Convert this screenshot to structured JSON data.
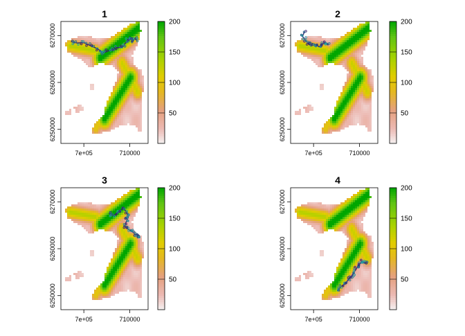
{
  "chart_data": [
    {
      "type": "heatmap",
      "title": "1",
      "xlabel": "",
      "ylabel": "",
      "x_ticks": [
        {
          "value": 700000,
          "label": "7e+05"
        },
        {
          "value": 710000,
          "label": "710000"
        }
      ],
      "y_ticks": [
        {
          "value": 6250000,
          "label": "6250000"
        },
        {
          "value": 6260000,
          "label": "6260000"
        },
        {
          "value": 6270000,
          "label": "6270000"
        }
      ],
      "xlim": [
        695000,
        714000
      ],
      "ylim": [
        6247000,
        6273000
      ],
      "legend": {
        "position": "right",
        "ticks": [
          50,
          100,
          150,
          200
        ],
        "range": [
          0,
          200
        ]
      },
      "track": [
        [
          697200,
          6268700
        ],
        [
          698500,
          6268400
        ],
        [
          700000,
          6268500
        ],
        [
          701500,
          6267800
        ],
        [
          703000,
          6267200
        ],
        [
          704200,
          6266300
        ],
        [
          705500,
          6266800
        ],
        [
          707000,
          6267400
        ],
        [
          708400,
          6267500
        ],
        [
          709400,
          6268800
        ],
        [
          710000,
          6269700
        ],
        [
          710800,
          6268900
        ],
        [
          711100,
          6269400
        ],
        [
          711500,
          6269000
        ]
      ]
    },
    {
      "type": "heatmap",
      "title": "2",
      "xlabel": "",
      "ylabel": "",
      "x_ticks": [
        {
          "value": 700000,
          "label": "7e+05"
        },
        {
          "value": 710000,
          "label": "710000"
        }
      ],
      "y_ticks": [
        {
          "value": 6250000,
          "label": "6250000"
        },
        {
          "value": 6260000,
          "label": "6260000"
        },
        {
          "value": 6270000,
          "label": "6270000"
        }
      ],
      "xlim": [
        695000,
        714000
      ],
      "ylim": [
        6247000,
        6273000
      ],
      "legend": {
        "position": "right",
        "ticks": [
          50,
          100,
          150,
          200
        ],
        "range": [
          0,
          200
        ]
      },
      "track": [
        [
          698000,
          6270800
        ],
        [
          697600,
          6269800
        ],
        [
          698400,
          6268800
        ],
        [
          699100,
          6268000
        ],
        [
          699800,
          6268300
        ],
        [
          700700,
          6268000
        ],
        [
          701200,
          6267600
        ],
        [
          701900,
          6268200
        ],
        [
          702600,
          6268400
        ],
        [
          703300,
          6268000
        ]
      ]
    },
    {
      "type": "heatmap",
      "title": "3",
      "xlabel": "",
      "ylabel": "",
      "x_ticks": [
        {
          "value": 700000,
          "label": "7e+05"
        },
        {
          "value": 710000,
          "label": "710000"
        }
      ],
      "y_ticks": [
        {
          "value": 6250000,
          "label": "6250000"
        },
        {
          "value": 6260000,
          "label": "6260000"
        },
        {
          "value": 6270000,
          "label": "6270000"
        }
      ],
      "xlim": [
        695000,
        714000
      ],
      "ylim": [
        6247000,
        6273000
      ],
      "legend": {
        "position": "right",
        "ticks": [
          50,
          100,
          150,
          200
        ],
        "range": [
          0,
          200
        ]
      },
      "track": [
        [
          705500,
          6267600
        ],
        [
          706500,
          6267000
        ],
        [
          707500,
          6267800
        ],
        [
          708500,
          6268600
        ],
        [
          709300,
          6267900
        ],
        [
          709700,
          6266900
        ],
        [
          709300,
          6265900
        ],
        [
          708900,
          6264900
        ],
        [
          709600,
          6264200
        ],
        [
          710600,
          6263600
        ],
        [
          711300,
          6263000
        ],
        [
          712100,
          6262800
        ],
        [
          712200,
          6262300
        ]
      ]
    },
    {
      "type": "heatmap",
      "title": "4",
      "xlabel": "",
      "ylabel": "",
      "x_ticks": [
        {
          "value": 700000,
          "label": "7e+05"
        },
        {
          "value": 710000,
          "label": "710000"
        }
      ],
      "y_ticks": [
        {
          "value": 6250000,
          "label": "6250000"
        },
        {
          "value": 6260000,
          "label": "6260000"
        },
        {
          "value": 6270000,
          "label": "6270000"
        }
      ],
      "xlim": [
        695000,
        714000
      ],
      "ylim": [
        6247000,
        6273000
      ],
      "legend": {
        "position": "right",
        "ticks": [
          50,
          100,
          150,
          200
        ],
        "range": [
          0,
          200
        ]
      },
      "track": [
        [
          705200,
          6251000
        ],
        [
          706000,
          6251900
        ],
        [
          706800,
          6252500
        ],
        [
          707600,
          6253400
        ],
        [
          708300,
          6254200
        ],
        [
          708900,
          6255100
        ],
        [
          709500,
          6256000
        ],
        [
          710000,
          6256700
        ],
        [
          710600,
          6257300
        ],
        [
          711200,
          6256900
        ],
        [
          711700,
          6257400
        ]
      ]
    }
  ]
}
